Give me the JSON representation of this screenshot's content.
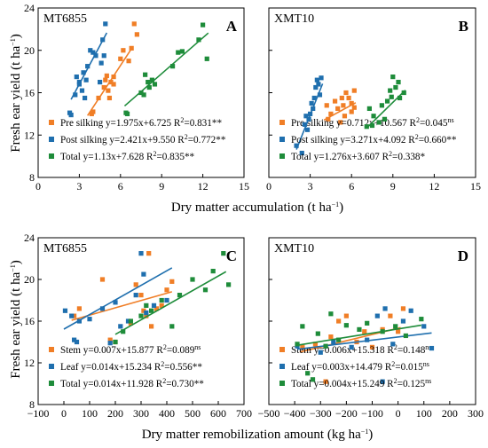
{
  "figure": {
    "ylabel_text": "Fresh ear yield (t ha",
    "ylabel_sup": "−1",
    "ylabel_close": ")",
    "xlabel_top_text": "Dry matter accumulation (t ha",
    "xlabel_top_sup": "−1",
    "xlabel_top_close": ")",
    "xlabel_bottom_text": "Dry matter remobilization amount (kg ha",
    "xlabel_bottom_sup": "−1",
    "xlabel_bottom_close": ")"
  },
  "chart_data": [
    {
      "panel": "A",
      "name": "MT6855",
      "type": "scatter",
      "xlim": [
        0,
        15
      ],
      "xticks": [
        0,
        3,
        6,
        9,
        12,
        15
      ],
      "ylim": [
        8,
        24
      ],
      "yticks": [
        8,
        12,
        16,
        20,
        24
      ],
      "legend_position": "bottom-left",
      "series": [
        {
          "name": "Pre silking",
          "color": "#F07E26",
          "eq": "y=1.975x+6.725 R",
          "r2": "=0.831",
          "sig": "**",
          "fit": {
            "slope": 1.975,
            "intercept": 6.725,
            "x": [
              3.6,
              6.8
            ]
          },
          "points": [
            [
              3.9,
              14.0
            ],
            [
              4.0,
              14.2
            ],
            [
              4.4,
              15.5
            ],
            [
              4.8,
              16.5
            ],
            [
              4.9,
              17.2
            ],
            [
              5.0,
              17.6
            ],
            [
              5.1,
              16.2
            ],
            [
              5.2,
              15.5
            ],
            [
              5.3,
              17.0
            ],
            [
              5.5,
              16.8
            ],
            [
              5.5,
              17.5
            ],
            [
              6.0,
              19.2
            ],
            [
              6.2,
              20.0
            ],
            [
              6.6,
              19.0
            ],
            [
              6.8,
              20.2
            ],
            [
              7.0,
              22.5
            ],
            [
              7.2,
              21.5
            ]
          ]
        },
        {
          "name": "Post silking",
          "color": "#1F6FAE",
          "eq": "y=2.421x+9.550 R",
          "r2": "=0.772",
          "sig": "**",
          "fit": {
            "slope": 2.421,
            "intercept": 9.55,
            "x": [
              2.4,
              5.0
            ]
          },
          "points": [
            [
              2.3,
              14.1
            ],
            [
              2.4,
              13.9
            ],
            [
              2.7,
              15.8
            ],
            [
              2.8,
              17.5
            ],
            [
              3.0,
              17.0
            ],
            [
              3.0,
              16.8
            ],
            [
              3.2,
              16.2
            ],
            [
              3.3,
              17.9
            ],
            [
              3.4,
              15.5
            ],
            [
              3.5,
              17.2
            ],
            [
              3.6,
              18.5
            ],
            [
              3.8,
              20.0
            ],
            [
              4.0,
              19.8
            ],
            [
              4.2,
              19.5
            ],
            [
              4.5,
              17.0
            ],
            [
              4.6,
              18.8
            ],
            [
              4.7,
              21.0
            ],
            [
              4.8,
              19.5
            ],
            [
              4.9,
              22.5
            ]
          ]
        },
        {
          "name": "Total",
          "color": "#1E8C3A",
          "eq": "y=1.13x+7.628 R",
          "r2": "=0.835",
          "sig": "**",
          "fit": {
            "slope": 1.13,
            "intercept": 7.628,
            "x": [
              6.3,
              12.4
            ]
          },
          "points": [
            [
              6.4,
              14.1
            ],
            [
              6.5,
              14.0
            ],
            [
              7.5,
              16.0
            ],
            [
              7.7,
              15.8
            ],
            [
              7.8,
              17.7
            ],
            [
              8.0,
              17.0
            ],
            [
              8.1,
              16.5
            ],
            [
              8.3,
              17.2
            ],
            [
              8.5,
              16.8
            ],
            [
              9.8,
              18.5
            ],
            [
              10.2,
              19.8
            ],
            [
              10.5,
              19.9
            ],
            [
              11.7,
              21.0
            ],
            [
              12.0,
              22.4
            ],
            [
              12.3,
              19.2
            ]
          ]
        }
      ]
    },
    {
      "panel": "B",
      "name": "XMT10",
      "type": "scatter",
      "xlim": [
        0,
        15
      ],
      "xticks": [
        0,
        3,
        6,
        9,
        12,
        15
      ],
      "ylim": [
        8,
        24
      ],
      "yticks": [
        8,
        12,
        16,
        20,
        24
      ],
      "legend_position": "bottom-left",
      "series": [
        {
          "name": "Pre silking",
          "color": "#F07E26",
          "eq": "y=0.712x+10.567 R",
          "r2": "=0.045",
          "sig": "ns",
          "fit": {
            "slope": 0.712,
            "intercept": 10.567,
            "x": [
              4.0,
              6.3
            ]
          },
          "points": [
            [
              4.2,
              14.8
            ],
            [
              4.3,
              13.5
            ],
            [
              4.5,
              14.0
            ],
            [
              4.8,
              15.2
            ],
            [
              5.0,
              14.5
            ],
            [
              5.2,
              13.2
            ],
            [
              5.3,
              15.5
            ],
            [
              5.4,
              14.8
            ],
            [
              5.5,
              13.8
            ],
            [
              5.6,
              16.0
            ],
            [
              5.8,
              15.5
            ],
            [
              6.0,
              14.2
            ],
            [
              6.0,
              15.0
            ],
            [
              6.2,
              14.6
            ],
            [
              6.2,
              16.2
            ]
          ]
        },
        {
          "name": "Post silking",
          "color": "#1F6FAE",
          "eq": "y=3.271x+4.092 R",
          "r2": "=0.660",
          "sig": "**",
          "fit": {
            "slope": 3.271,
            "intercept": 4.092,
            "x": [
              2.0,
              3.9
            ]
          },
          "points": [
            [
              2.0,
              11.0
            ],
            [
              2.4,
              10.3
            ],
            [
              2.6,
              13.0
            ],
            [
              2.7,
              13.8
            ],
            [
              2.8,
              12.5
            ],
            [
              2.9,
              13.5
            ],
            [
              3.0,
              14.0
            ],
            [
              3.1,
              15.0
            ],
            [
              3.2,
              14.5
            ],
            [
              3.3,
              15.5
            ],
            [
              3.4,
              16.5
            ],
            [
              3.5,
              17.2
            ],
            [
              3.6,
              16.8
            ],
            [
              3.7,
              15.8
            ],
            [
              3.8,
              17.4
            ]
          ]
        },
        {
          "name": "Total",
          "color": "#1E8C3A",
          "eq": "y=1.276x+3.607 R",
          "r2": "=0.338",
          "sig": "*",
          "fit": {
            "slope": 1.276,
            "intercept": 3.607,
            "x": [
              7.1,
              9.9
            ]
          },
          "points": [
            [
              7.1,
              12.8
            ],
            [
              7.3,
              14.5
            ],
            [
              7.5,
              12.9
            ],
            [
              7.6,
              13.8
            ],
            [
              8.0,
              13.2
            ],
            [
              8.2,
              14.8
            ],
            [
              8.4,
              13.5
            ],
            [
              8.6,
              15.2
            ],
            [
              8.8,
              16.2
            ],
            [
              8.9,
              15.6
            ],
            [
              9.0,
              17.5
            ],
            [
              9.2,
              16.5
            ],
            [
              9.4,
              17.0
            ],
            [
              9.5,
              15.5
            ],
            [
              9.8,
              16.0
            ]
          ]
        }
      ]
    },
    {
      "panel": "C",
      "name": "MT6855",
      "type": "scatter",
      "xlim": [
        -100,
        700
      ],
      "xticks": [
        -100,
        0,
        100,
        200,
        300,
        400,
        500,
        600,
        700
      ],
      "ylim": [
        8,
        24
      ],
      "yticks": [
        8,
        12,
        16,
        20,
        24
      ],
      "legend_position": "bottom-left",
      "series": [
        {
          "name": "Stem",
          "color": "#F07E26",
          "eq": "y=0.007x+15.877 R",
          "r2": "=0.089",
          "sig": "ns",
          "fit": {
            "slope": 0.007,
            "intercept": 15.877,
            "x": [
              30,
              420
            ]
          },
          "points": [
            [
              40,
              16.5
            ],
            [
              60,
              17.2
            ],
            [
              150,
              20.0
            ],
            [
              180,
              14.2
            ],
            [
              200,
              14.0
            ],
            [
              260,
              15.8
            ],
            [
              280,
              19.5
            ],
            [
              300,
              18.5
            ],
            [
              310,
              17.0
            ],
            [
              320,
              16.5
            ],
            [
              330,
              22.5
            ],
            [
              340,
              15.5
            ],
            [
              360,
              17.2
            ],
            [
              380,
              17.5
            ],
            [
              400,
              19.0
            ],
            [
              420,
              19.8
            ]
          ]
        },
        {
          "name": "Leaf",
          "color": "#1F6FAE",
          "eq": "y=0.014x+15.234 R",
          "r2": "=0.556",
          "sig": "**",
          "fit": {
            "slope": 0.014,
            "intercept": 15.234,
            "x": [
              0,
              420
            ]
          },
          "points": [
            [
              5,
              17.0
            ],
            [
              30,
              16.5
            ],
            [
              40,
              14.2
            ],
            [
              50,
              14.0
            ],
            [
              60,
              16.0
            ],
            [
              100,
              16.2
            ],
            [
              150,
              17.2
            ],
            [
              180,
              13.9
            ],
            [
              200,
              17.8
            ],
            [
              220,
              15.5
            ],
            [
              250,
              16.0
            ],
            [
              280,
              18.5
            ],
            [
              300,
              22.5
            ],
            [
              310,
              20.5
            ],
            [
              320,
              16.8
            ],
            [
              350,
              17.5
            ],
            [
              400,
              18.0
            ]
          ]
        },
        {
          "name": "Total",
          "color": "#1E8C3A",
          "eq": "y=0.014x+11.928 R",
          "r2": "=0.730",
          "sig": "**",
          "fit": {
            "slope": 0.014,
            "intercept": 11.928,
            "x": [
              200,
              630
            ]
          },
          "points": [
            [
              200,
              14.0
            ],
            [
              230,
              15.0
            ],
            [
              260,
              16.0
            ],
            [
              300,
              16.5
            ],
            [
              320,
              17.5
            ],
            [
              340,
              17.0
            ],
            [
              380,
              18.0
            ],
            [
              420,
              15.5
            ],
            [
              450,
              18.5
            ],
            [
              500,
              20.0
            ],
            [
              550,
              19.0
            ],
            [
              580,
              20.8
            ],
            [
              620,
              22.5
            ],
            [
              640,
              19.5
            ]
          ]
        }
      ]
    },
    {
      "panel": "D",
      "name": "XMT10",
      "type": "scatter",
      "xlim": [
        -500,
        300
      ],
      "xticks": [
        -500,
        -400,
        -300,
        -200,
        -100,
        0,
        100,
        200,
        300
      ],
      "ylim": [
        8,
        24
      ],
      "yticks": [
        8,
        12,
        16,
        20,
        24
      ],
      "legend_position": "bottom-left",
      "series": [
        {
          "name": "Stem",
          "color": "#F07E26",
          "eq": "y=0.006x+15.318 R",
          "r2": "=0.148",
          "sig": "ns",
          "fit": {
            "slope": 0.006,
            "intercept": 15.318,
            "x": [
              -380,
              10
            ]
          },
          "points": [
            [
              -370,
              13.5
            ],
            [
              -320,
              13.8
            ],
            [
              -280,
              10.2
            ],
            [
              -260,
              14.5
            ],
            [
              -230,
              16.0
            ],
            [
              -200,
              16.5
            ],
            [
              -160,
              14.0
            ],
            [
              -130,
              15.0
            ],
            [
              -100,
              13.5
            ],
            [
              -60,
              15.2
            ],
            [
              -30,
              16.5
            ],
            [
              0,
              15.0
            ],
            [
              20,
              17.2
            ]
          ]
        },
        {
          "name": "Leaf",
          "color": "#1F6FAE",
          "eq": "y=0.003x+14.479 R",
          "r2": "=0.015",
          "sig": "ns",
          "fit": {
            "slope": 0.003,
            "intercept": 14.479,
            "x": [
              -390,
              130
            ]
          },
          "points": [
            [
              -390,
              13.6
            ],
            [
              -300,
              13.0
            ],
            [
              -250,
              14.0
            ],
            [
              -180,
              13.5
            ],
            [
              -120,
              14.2
            ],
            [
              -80,
              16.5
            ],
            [
              -60,
              10.2
            ],
            [
              -50,
              17.2
            ],
            [
              -20,
              13.8
            ],
            [
              20,
              16.0
            ],
            [
              50,
              17.0
            ],
            [
              100,
              15.5
            ],
            [
              130,
              13.4
            ]
          ]
        },
        {
          "name": "Total",
          "color": "#1E8C3A",
          "eq": "y=0.004x+15.249 R",
          "r2": "=0.125",
          "sig": "ns",
          "fit": {
            "slope": 0.004,
            "intercept": 15.249,
            "x": [
              -390,
              90
            ]
          },
          "points": [
            [
              -390,
              13.8
            ],
            [
              -370,
              15.5
            ],
            [
              -350,
              11.0
            ],
            [
              -330,
              10.4
            ],
            [
              -310,
              14.8
            ],
            [
              -280,
              13.6
            ],
            [
              -260,
              16.7
            ],
            [
              -230,
              14.2
            ],
            [
              -200,
              15.6
            ],
            [
              -150,
              15.2
            ],
            [
              -120,
              15.8
            ],
            [
              -60,
              15.0
            ],
            [
              -10,
              15.5
            ],
            [
              30,
              14.6
            ],
            [
              90,
              16.2
            ]
          ]
        }
      ]
    }
  ]
}
